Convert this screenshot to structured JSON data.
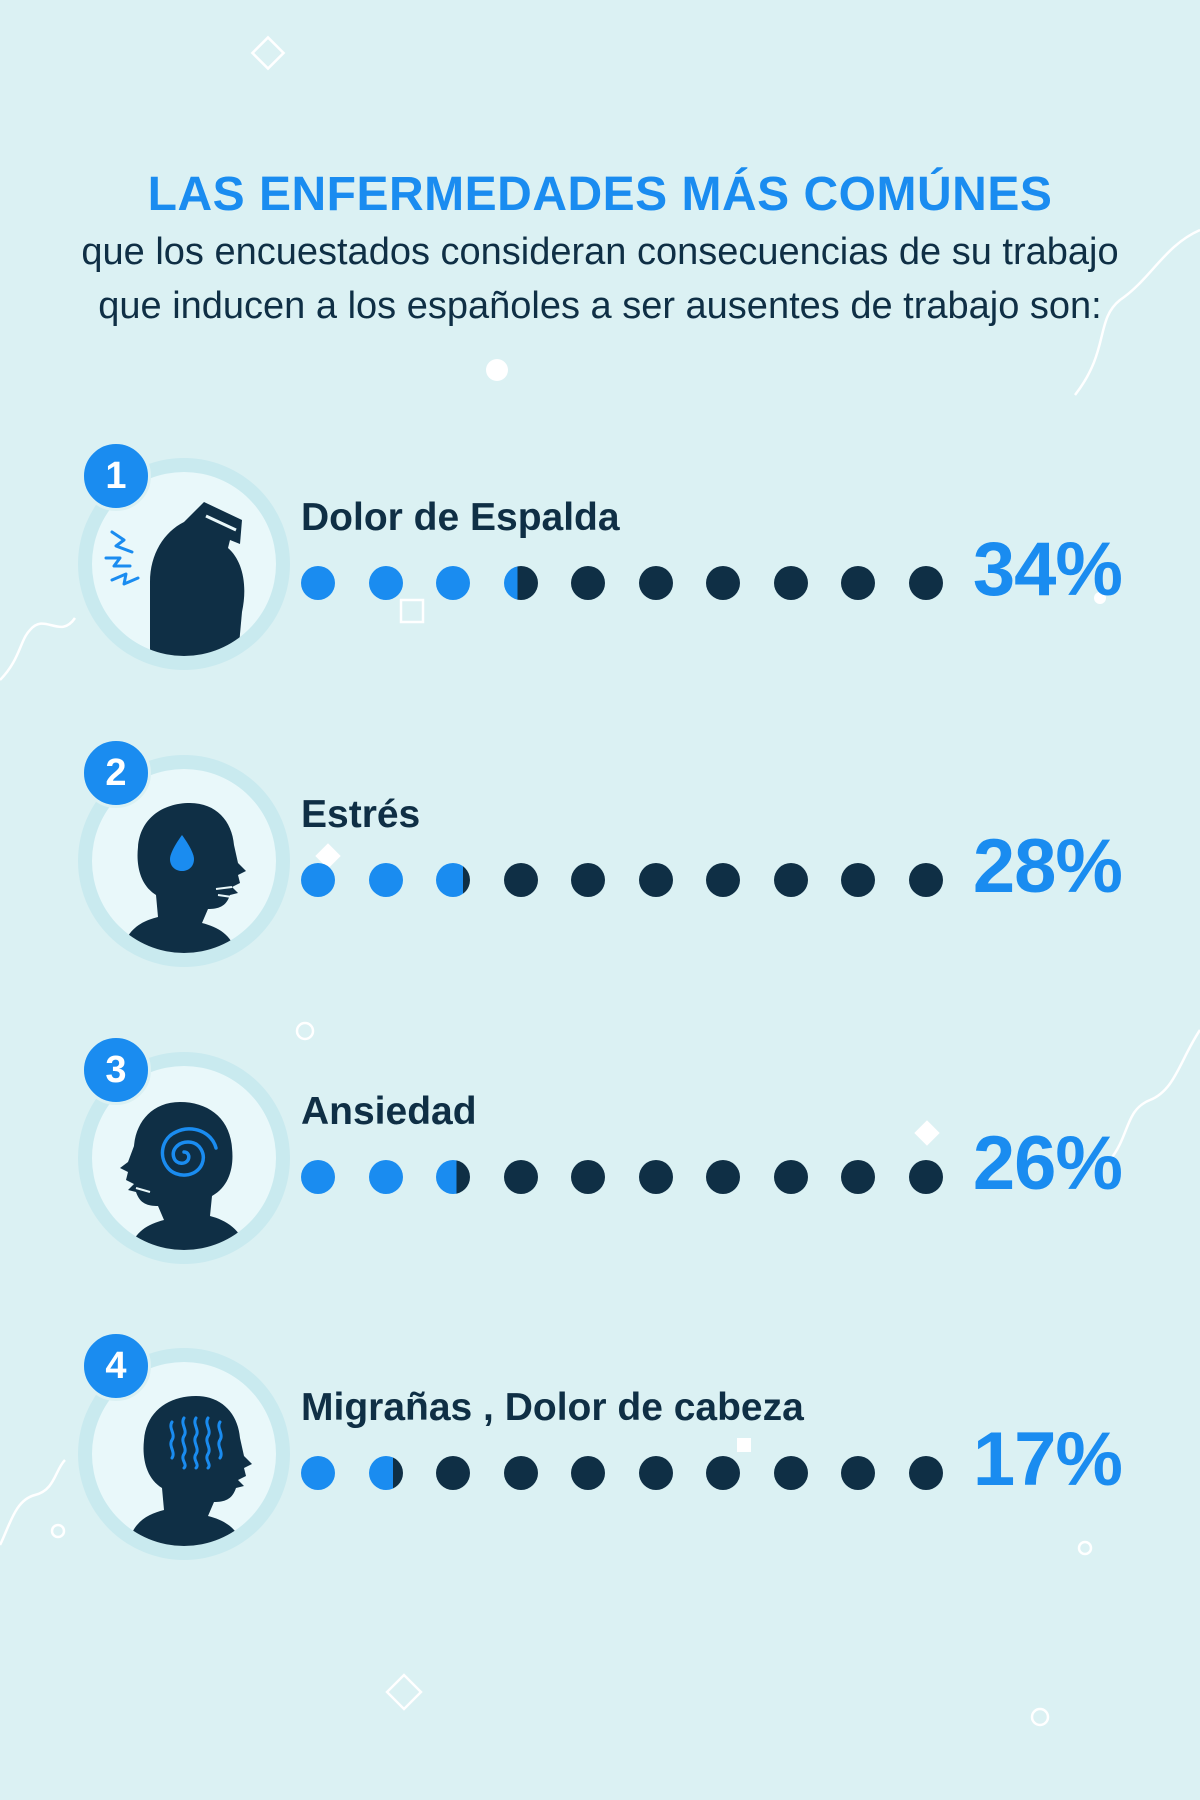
{
  "header": {
    "title": "LAS ENFERMEDADES MÁS COMÚNES",
    "subtitle_line1": "que los encuestados consideran consecuencias de su trabajo",
    "subtitle_line2": "que inducen a los españoles a ser ausentes de trabajo son:"
  },
  "colors": {
    "background": "#dbf1f3",
    "accent": "#1a8cf0",
    "dark": "#0f2f45"
  },
  "items": [
    {
      "rank": "1",
      "label": "Dolor de Espalda",
      "percent_label": "34%",
      "value": 34,
      "icon": "back-pain-icon"
    },
    {
      "rank": "2",
      "label": "Estrés",
      "percent_label": "28%",
      "value": 28,
      "icon": "stress-icon"
    },
    {
      "rank": "3",
      "label": "Ansiedad",
      "percent_label": "26%",
      "value": 26,
      "icon": "anxiety-icon"
    },
    {
      "rank": "4",
      "label": "Migrañas , Dolor de cabeza",
      "percent_label": "17%",
      "value": 17,
      "icon": "headache-icon"
    }
  ]
}
